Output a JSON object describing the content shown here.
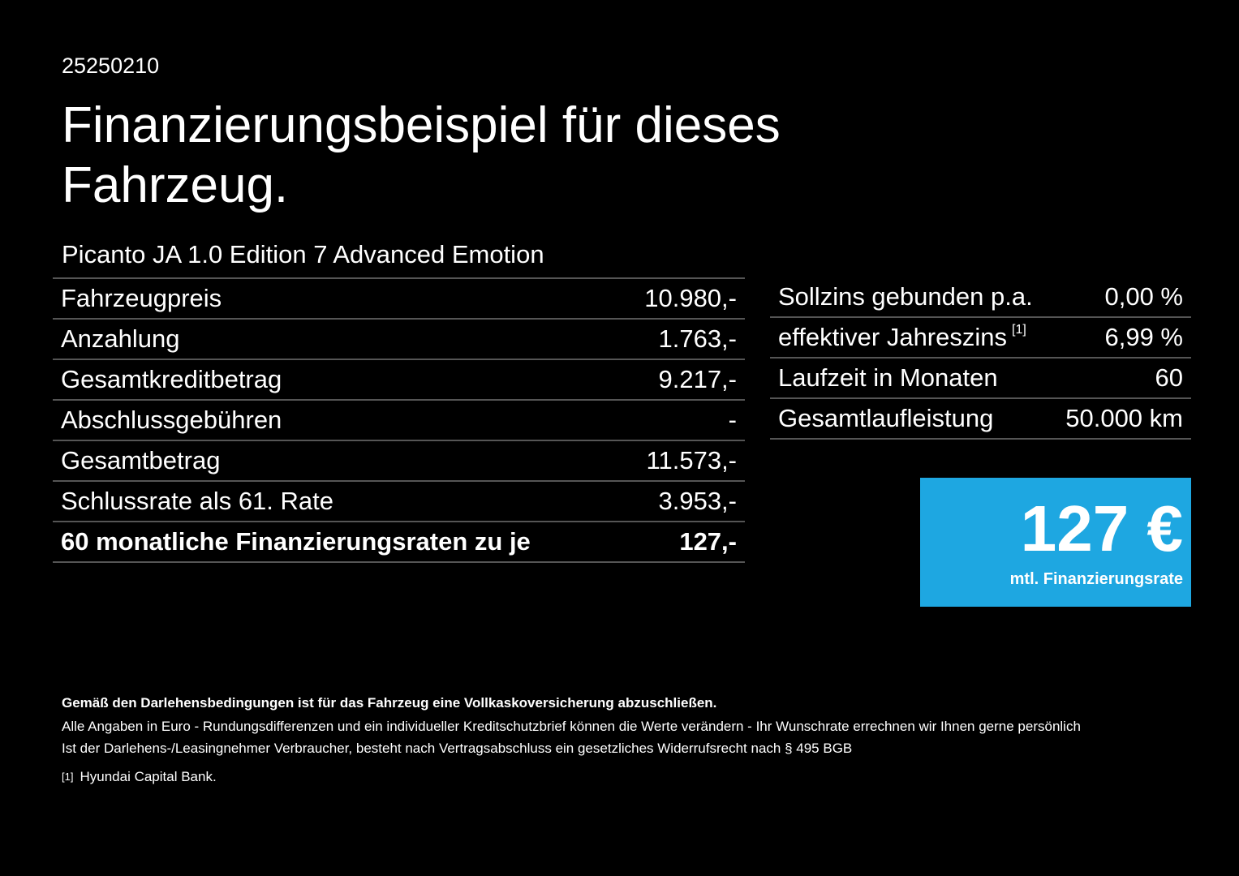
{
  "header": {
    "code": "25250210",
    "title_line1": "Finanzierungsbeispiel für dieses",
    "title_line2": "Fahrzeug."
  },
  "model": "Picanto JA 1.0 Edition 7 Advanced Emotion",
  "left_table": {
    "rows": [
      [
        "Fahrzeugpreis",
        "10.980,-"
      ],
      [
        "Anzahlung",
        "1.763,-"
      ],
      [
        "Gesamtkreditbetrag",
        "9.217,-"
      ],
      [
        "Abschlussgebühren",
        "-"
      ],
      [
        "Gesamtbetrag",
        "11.573,-"
      ],
      [
        "Schlussrate als 61. Rate",
        "3.953,-"
      ],
      [
        "60 monatliche Finanzierungsraten zu je",
        "127,-"
      ]
    ]
  },
  "right_table": {
    "rows": [
      [
        "Sollzins gebunden p.a.",
        "0,00 %"
      ],
      [
        "effektiver Jahreszins",
        "6,99 %"
      ],
      [
        "Laufzeit in Monaten",
        "60"
      ],
      [
        "Gesamtlaufleistung",
        "50.000 km"
      ]
    ],
    "footnote_ref": "[1]"
  },
  "rate_box": {
    "amount": "127 €",
    "caption": "mtl. Finanzierungsrate"
  },
  "notes": {
    "bold": "Gemäß den Darlehensbedingungen ist für das Fahrzeug eine Vollkaskoversicherung abzuschließen.",
    "line1": "Alle Angaben in Euro - Rundungsdifferenzen und ein individueller Kreditschutzbrief können die Werte verändern - Ihr Wunschrate errechnen wir Ihnen gerne persönlich",
    "line2": "Ist der Darlehens-/Leasingnehmer Verbraucher, besteht nach Vertragsabschluss ein gesetzliches Widerrufsrecht nach § 495 BGB",
    "footnote_mark": "[1]",
    "footnote": "Hyundai Capital Bank."
  }
}
